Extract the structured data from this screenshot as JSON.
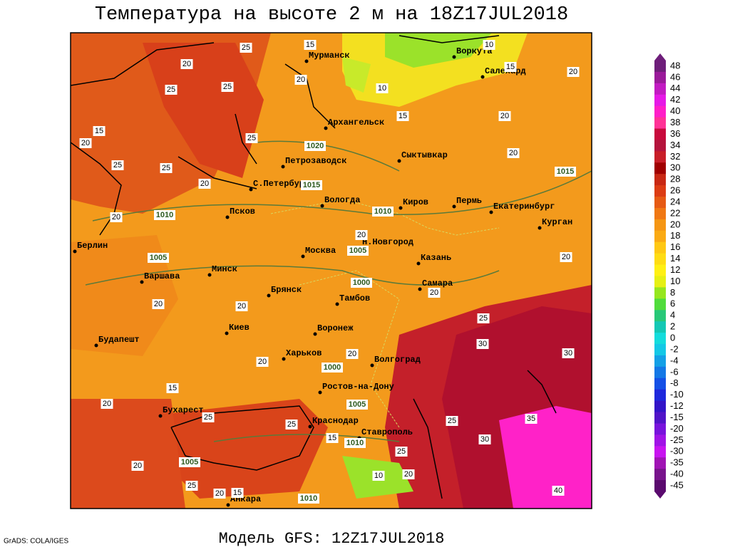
{
  "title": "Температура на высоте 2 м на 18Z17JUL2018",
  "model_label": "Модель GFS: 12Z17JUL2018",
  "credit": "GrADS: COLA/IGES",
  "cities": [
    "Мурманск",
    "Воркута",
    "Салехард",
    "Архангельск",
    "Петрозаводск",
    "Сыктывкар",
    "С.Петербург",
    "Вологда",
    "Киров",
    "Пермь",
    "Екатеринбург",
    "Курган",
    "Псков",
    "Н.Новгород",
    "Берлин",
    "Москва",
    "Казань",
    "Варшава",
    "Минск",
    "Самара",
    "Брянск",
    "Тамбов",
    "Киев",
    "Воронеж",
    "Будапешт",
    "Харьков",
    "Волгоград",
    "Ростов-на-Дону",
    "Бухарест",
    "Краснодар",
    "Ставрополь",
    "Анкара"
  ],
  "contour_labels": [
    25,
    15,
    10,
    15,
    20,
    20,
    20,
    25,
    25,
    10,
    15,
    20,
    15,
    25,
    1020,
    20,
    20,
    25,
    25,
    20,
    1015,
    1015,
    1010,
    20,
    1010,
    20,
    1005,
    1005,
    20,
    1000,
    20,
    20,
    20,
    25,
    30,
    20,
    30,
    20,
    1000,
    15,
    20,
    1005,
    25,
    25,
    25,
    35,
    15,
    1010,
    30,
    25,
    1005,
    20,
    10,
    20,
    25,
    20,
    15,
    1010,
    40
  ],
  "colorbar": {
    "levels": [
      48,
      46,
      44,
      42,
      40,
      38,
      36,
      34,
      32,
      30,
      28,
      26,
      24,
      22,
      20,
      18,
      16,
      14,
      12,
      10,
      8,
      6,
      4,
      2,
      0,
      -2,
      -4,
      -6,
      -8,
      -10,
      -12,
      -15,
      -20,
      -25,
      -30,
      -35,
      -40,
      -45
    ],
    "colors": [
      "#6e1e7a",
      "#9a1a9a",
      "#c21bc2",
      "#e619e6",
      "#ff1ec8",
      "#ff3296",
      "#c80a3c",
      "#b4143c",
      "#c81e28",
      "#a00000",
      "#c82814",
      "#dc3c14",
      "#e65a14",
      "#f07814",
      "#f59614",
      "#faaa14",
      "#ffc814",
      "#ffdc14",
      "#fff014",
      "#e6f014",
      "#96e61e",
      "#50dc3c",
      "#28c878",
      "#14c8b4",
      "#14dcdc",
      "#14c8e6",
      "#14a0e6",
      "#1478e6",
      "#1450e6",
      "#1e28dc",
      "#3214c8",
      "#5014c8",
      "#7814dc",
      "#a014e6",
      "#c814f0",
      "#a014b4",
      "#78148c",
      "#5a0a6e"
    ]
  }
}
